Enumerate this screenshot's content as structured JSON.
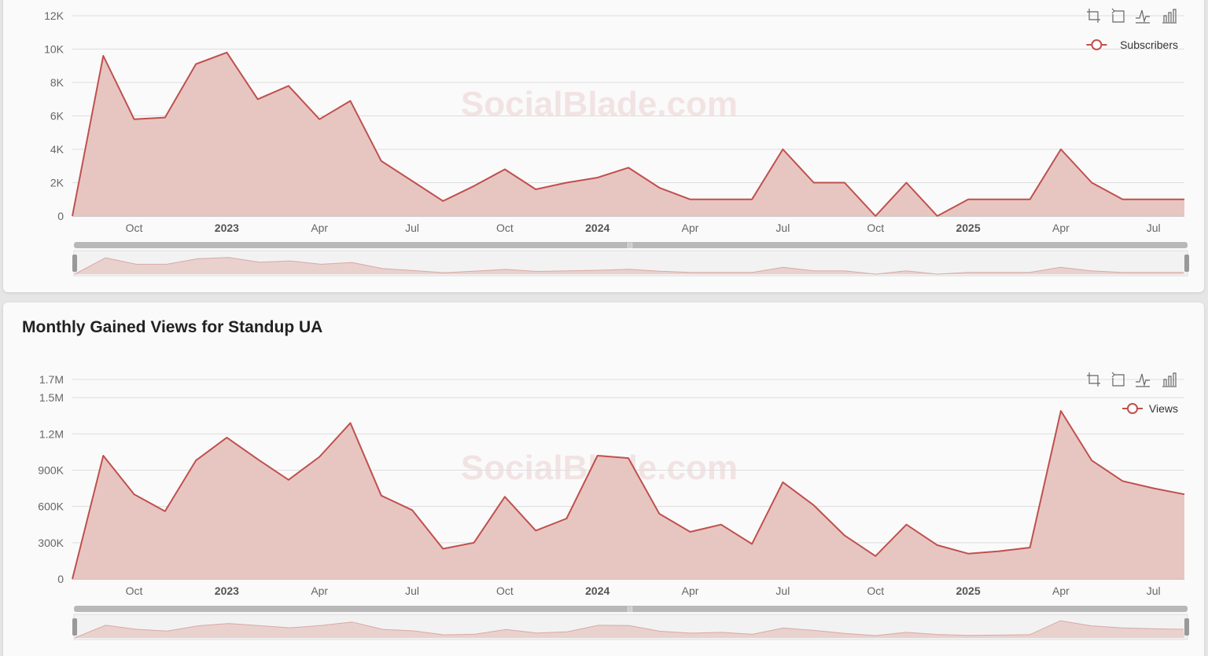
{
  "watermark": "SocialBlade.com",
  "colors": {
    "line": "#c0504d",
    "area": "#e6c3bf",
    "grid": "#dddddd",
    "slider": "#b8b8b8"
  },
  "toolbox_icons": [
    "zoom-icon",
    "zoom-reset-icon",
    "line-chart-icon",
    "bar-chart-icon"
  ],
  "chart_data": [
    {
      "type": "area",
      "title": "",
      "legend": "top-right",
      "series": [
        {
          "name": "Subscribers",
          "x": [
            "2022-08",
            "2022-09",
            "2022-10",
            "2022-11",
            "2022-12",
            "2023-01",
            "2023-02",
            "2023-03",
            "2023-04",
            "2023-05",
            "2023-06",
            "2023-07",
            "2023-08",
            "2023-09",
            "2023-10",
            "2023-11",
            "2023-12",
            "2024-01",
            "2024-02",
            "2024-03",
            "2024-04",
            "2024-05",
            "2024-06",
            "2024-07",
            "2024-08",
            "2024-09",
            "2024-10",
            "2024-11",
            "2024-12",
            "2025-01",
            "2025-02",
            "2025-03",
            "2025-04",
            "2025-05",
            "2025-06",
            "2025-07",
            "2025-08"
          ],
          "values": [
            0,
            9600,
            5800,
            5900,
            9100,
            9800,
            7000,
            7800,
            5800,
            6900,
            3300,
            2100,
            900,
            1800,
            2800,
            1600,
            2000,
            2300,
            2900,
            1700,
            1000,
            1000,
            1000,
            4000,
            2000,
            2000,
            0,
            2000,
            0,
            1000,
            1000,
            1000,
            4000,
            2000,
            1000,
            1000,
            1000
          ]
        }
      ],
      "y_ticks": [
        "0",
        "2K",
        "4K",
        "6K",
        "8K",
        "10K",
        "12K"
      ],
      "ylim": [
        0,
        12000
      ],
      "x_ticks": [
        {
          "label": "Oct",
          "x": "2022-10"
        },
        {
          "label": "2023",
          "x": "2023-01",
          "bold": true
        },
        {
          "label": "Apr",
          "x": "2023-04"
        },
        {
          "label": "Jul",
          "x": "2023-07"
        },
        {
          "label": "Oct",
          "x": "2023-10"
        },
        {
          "label": "2024",
          "x": "2024-01",
          "bold": true
        },
        {
          "label": "Apr",
          "x": "2024-04"
        },
        {
          "label": "Jul",
          "x": "2024-07"
        },
        {
          "label": "Oct",
          "x": "2024-10"
        },
        {
          "label": "2025",
          "x": "2025-01",
          "bold": true
        },
        {
          "label": "Apr",
          "x": "2025-04"
        },
        {
          "label": "Jul",
          "x": "2025-07"
        }
      ],
      "grid": true
    },
    {
      "type": "area",
      "title": "Monthly Gained Views for Standup UA",
      "legend": "top-right",
      "series": [
        {
          "name": "Views",
          "x": [
            "2022-08",
            "2022-09",
            "2022-10",
            "2022-11",
            "2022-12",
            "2023-01",
            "2023-02",
            "2023-03",
            "2023-04",
            "2023-05",
            "2023-06",
            "2023-07",
            "2023-08",
            "2023-09",
            "2023-10",
            "2023-11",
            "2023-12",
            "2024-01",
            "2024-02",
            "2024-03",
            "2024-04",
            "2024-05",
            "2024-06",
            "2024-07",
            "2024-08",
            "2024-09",
            "2024-10",
            "2024-11",
            "2024-12",
            "2025-01",
            "2025-02",
            "2025-03",
            "2025-04",
            "2025-05",
            "2025-06",
            "2025-07",
            "2025-08"
          ],
          "values": [
            0,
            1020000,
            700000,
            560000,
            980000,
            1170000,
            990000,
            820000,
            1010000,
            1290000,
            690000,
            570000,
            250000,
            300000,
            680000,
            400000,
            500000,
            1020000,
            1000000,
            540000,
            390000,
            450000,
            290000,
            800000,
            610000,
            360000,
            190000,
            450000,
            280000,
            210000,
            230000,
            260000,
            1390000,
            980000,
            810000,
            750000,
            700000
          ]
        }
      ],
      "y_ticks": [
        "0",
        "300K",
        "600K",
        "900K",
        "1.2M",
        "1.5M",
        "1.7M"
      ],
      "y_tick_values": [
        0,
        300000,
        600000,
        900000,
        1200000,
        1500000,
        1650000
      ],
      "ylim": [
        0,
        1650000
      ],
      "x_ticks": [
        {
          "label": "Oct",
          "x": "2022-10"
        },
        {
          "label": "2023",
          "x": "2023-01",
          "bold": true
        },
        {
          "label": "Apr",
          "x": "2023-04"
        },
        {
          "label": "Jul",
          "x": "2023-07"
        },
        {
          "label": "Oct",
          "x": "2023-10"
        },
        {
          "label": "2024",
          "x": "2024-01",
          "bold": true
        },
        {
          "label": "Apr",
          "x": "2024-04"
        },
        {
          "label": "Jul",
          "x": "2024-07"
        },
        {
          "label": "Oct",
          "x": "2024-10"
        },
        {
          "label": "2025",
          "x": "2025-01",
          "bold": true
        },
        {
          "label": "Apr",
          "x": "2025-04"
        },
        {
          "label": "Jul",
          "x": "2025-07"
        }
      ],
      "grid": true
    }
  ]
}
